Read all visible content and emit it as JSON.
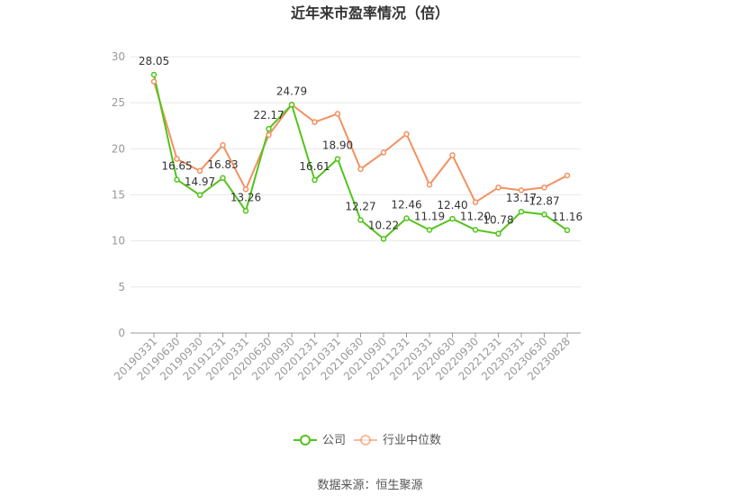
{
  "chart_data": {
    "type": "line",
    "title": "近年来市盈率情况（倍）",
    "categories": [
      "20190331",
      "20190630",
      "20190930",
      "20191231",
      "20200331",
      "20200630",
      "20200930",
      "20201231",
      "20210331",
      "20210630",
      "20210930",
      "20211231",
      "20220331",
      "20220630",
      "20220930",
      "20221231",
      "20230331",
      "20230630",
      "20230828"
    ],
    "ylim": [
      0,
      30
    ],
    "yticks": [
      0,
      5,
      10,
      15,
      20,
      25,
      30
    ],
    "grid": true,
    "legend_position": "bottom",
    "series": [
      {
        "name": "公司",
        "color": "#52c41a",
        "values": [
          28.05,
          16.65,
          14.97,
          16.83,
          13.26,
          22.17,
          24.79,
          16.61,
          18.9,
          12.27,
          10.22,
          12.46,
          11.19,
          12.4,
          11.2,
          10.78,
          13.17,
          12.87,
          11.16
        ],
        "labels": [
          "28.05",
          "16.65",
          "14.97",
          "16.83",
          "13.26",
          "22.17",
          "24.79",
          "16.61",
          "18.90",
          "12.27",
          "10.22",
          "12.46",
          "11.19",
          "12.40",
          "11.20",
          "10.78",
          "13.17",
          "12.87",
          "11.16"
        ]
      },
      {
        "name": "行业中位数",
        "color": "#f39060",
        "values": [
          27.3,
          18.9,
          17.6,
          20.4,
          15.6,
          21.5,
          24.8,
          22.9,
          23.8,
          17.8,
          19.6,
          21.6,
          16.1,
          19.3,
          14.2,
          15.8,
          15.5,
          15.8,
          17.1
        ]
      }
    ],
    "source": "数据来源：恒生聚源"
  }
}
